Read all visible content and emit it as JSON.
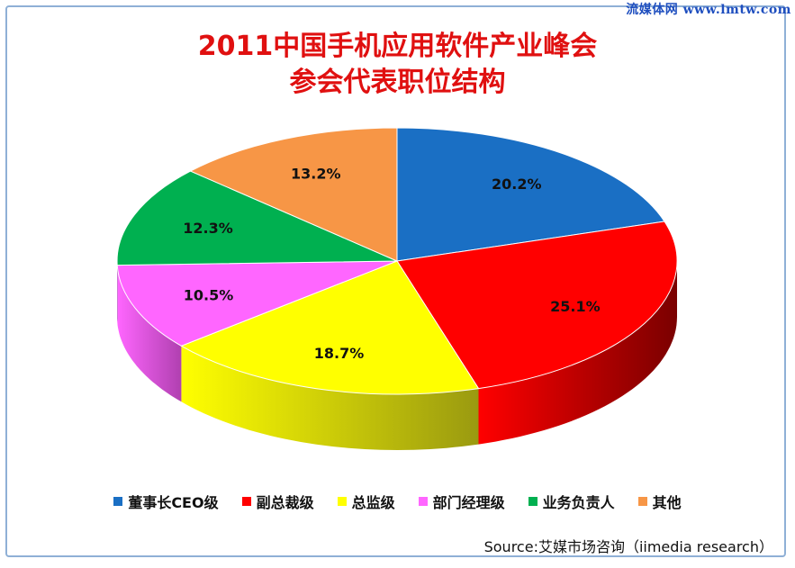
{
  "watermark": "流媒体网  www.lmtw.com",
  "chart_data": {
    "type": "pie",
    "title_lines": [
      "2011中国手机应用软件产业峰会",
      "参会代表职位结构"
    ],
    "slices": [
      {
        "name": "董事长CEO级",
        "value": 20.2,
        "label": "20.2%",
        "color": "#1a6fc4",
        "side": "#0e4a88"
      },
      {
        "name": "副总裁级",
        "value": 25.1,
        "label": "25.1%",
        "color": "#ff0000",
        "side": "#7a0000"
      },
      {
        "name": "总监级",
        "value": 18.7,
        "label": "18.7%",
        "color": "#ffff00",
        "side": "#9a9a10"
      },
      {
        "name": "部门经理级",
        "value": 10.5,
        "label": "10.5%",
        "color": "#ff66ff",
        "side": "#b040b0"
      },
      {
        "name": "业务负责人",
        "value": 12.3,
        "label": "12.3%",
        "color": "#00b050",
        "side": "#006a30"
      },
      {
        "name": "其他",
        "value": 13.2,
        "label": "13.2%",
        "color": "#f79646",
        "side": "#a85c20"
      }
    ],
    "legend_position": "bottom"
  },
  "source": "Source:艾媒市场咨询（iimedia  research）"
}
